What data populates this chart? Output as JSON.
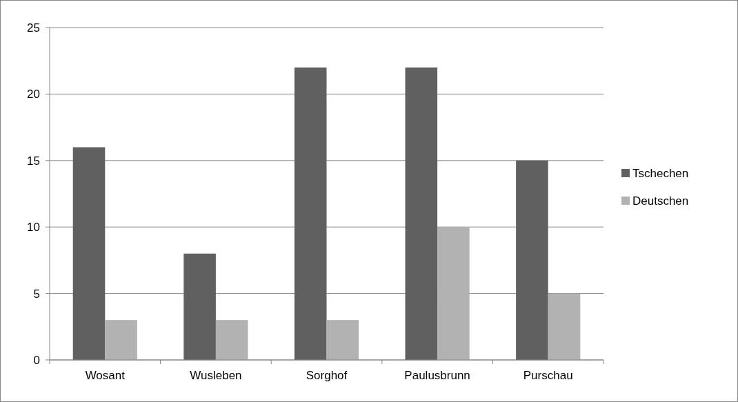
{
  "chart_data": {
    "type": "bar",
    "categories": [
      "Wosant",
      "Wusleben",
      "Sorghof",
      "Paulusbrunn",
      "Purschau"
    ],
    "series": [
      {
        "name": "Tschechen",
        "color": "#606060",
        "values": [
          16,
          8,
          22,
          22,
          15
        ]
      },
      {
        "name": "Deutschen",
        "color": "#b2b2b2",
        "values": [
          3,
          3,
          3,
          10,
          5
        ]
      }
    ],
    "ylim": [
      0,
      25
    ],
    "yticks": [
      0,
      5,
      10,
      15,
      20,
      25
    ],
    "grid": "y",
    "legend": "right"
  }
}
